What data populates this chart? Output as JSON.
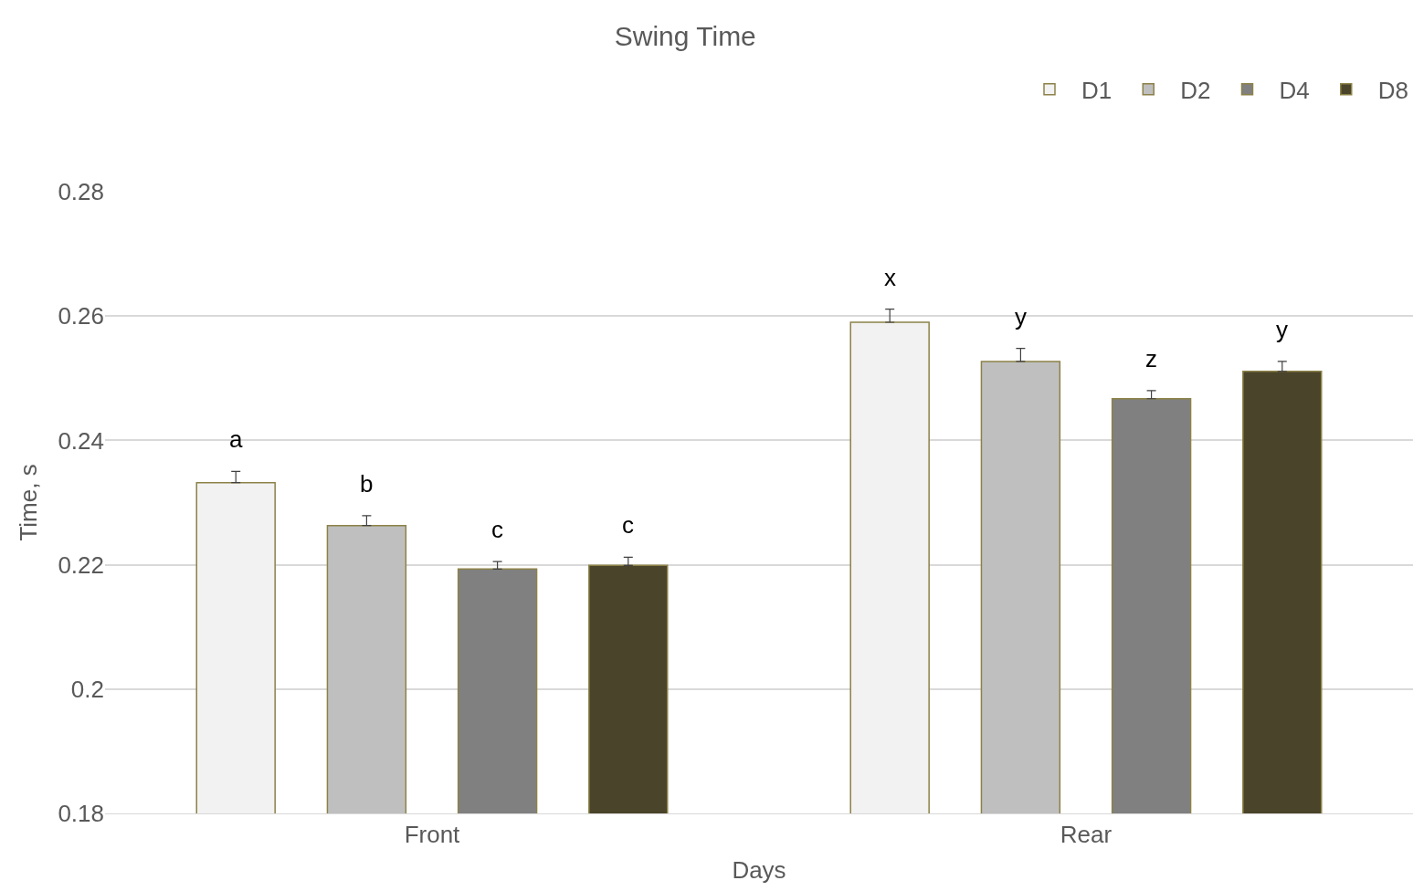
{
  "chart_data": {
    "type": "bar",
    "title": "Swing Time",
    "xlabel": "Days",
    "ylabel": "Time, s",
    "categories": [
      "Front",
      "Rear"
    ],
    "series": [
      {
        "name": "D1",
        "color": "#f2f2f2",
        "values": [
          0.2332,
          0.259
        ],
        "errors": [
          [
            0.2332,
            0.235
          ],
          [
            0.259,
            0.2611
          ]
        ],
        "value_labels": [
          "a",
          "x"
        ]
      },
      {
        "name": "D2",
        "color": "#bfbfbf",
        "values": [
          0.2263,
          0.2527
        ],
        "errors": [
          [
            0.2263,
            0.2279
          ],
          [
            0.2527,
            0.2548
          ]
        ],
        "value_labels": [
          "b",
          "y"
        ]
      },
      {
        "name": "D4",
        "color": "#808080",
        "values": [
          0.2193,
          0.2467
        ],
        "errors": [
          [
            0.2193,
            0.2205
          ],
          [
            0.2467,
            0.248
          ]
        ],
        "value_labels": [
          "c",
          "z"
        ]
      },
      {
        "name": "D8",
        "color": "#4a442a",
        "values": [
          0.2199,
          0.2511
        ],
        "errors": [
          [
            0.2199,
            0.2212
          ],
          [
            0.2511,
            0.2527
          ]
        ],
        "value_labels": [
          "c",
          "y"
        ]
      }
    ],
    "ylim": [
      0.18,
      0.28
    ],
    "yticks": [
      0.18,
      0.2,
      0.22,
      0.24,
      0.26,
      0.28
    ],
    "grid": "y",
    "legend": "top right"
  }
}
